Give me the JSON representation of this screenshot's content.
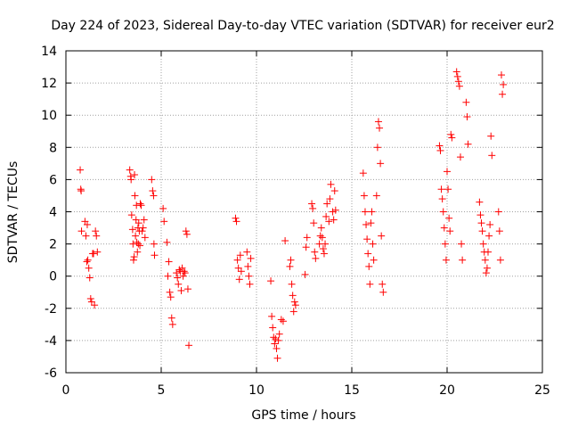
{
  "chart_data": {
    "type": "scatter",
    "title": "Day 224 of 2023, Sidereal Day-to-day VTEC variation (SDTVAR) for receiver eur2",
    "xlabel": "GPS time / hours",
    "ylabel": "SDTVAR / TECUs",
    "xlim": [
      0,
      25
    ],
    "ylim": [
      -6,
      14
    ],
    "xticks": [
      0,
      5,
      10,
      15,
      20,
      25
    ],
    "yticks": [
      -6,
      -4,
      -2,
      0,
      2,
      4,
      6,
      8,
      10,
      12,
      14
    ],
    "grid": true,
    "marker": "+",
    "color": "#ff0000",
    "series": [
      {
        "name": "SDTVAR",
        "x": [
          0.75,
          0.78,
          0.8,
          0.82,
          1.0,
          1.05,
          1.1,
          1.12,
          1.15,
          1.2,
          1.25,
          1.3,
          1.35,
          1.4,
          1.45,
          1.5,
          1.55,
          1.6,
          1.65,
          3.35,
          3.4,
          3.42,
          3.45,
          3.5,
          3.52,
          3.55,
          3.58,
          3.6,
          3.62,
          3.65,
          3.68,
          3.7,
          3.72,
          3.75,
          3.78,
          3.8,
          3.82,
          3.85,
          3.88,
          3.9,
          3.95,
          4.0,
          4.05,
          4.1,
          4.15,
          4.5,
          4.55,
          4.6,
          4.62,
          4.65,
          5.1,
          5.15,
          5.3,
          5.35,
          5.4,
          5.45,
          5.5,
          5.55,
          5.6,
          5.8,
          5.85,
          5.9,
          5.95,
          6.0,
          6.05,
          6.1,
          6.15,
          6.2,
          6.25,
          6.3,
          6.35,
          6.4,
          6.45,
          8.9,
          8.95,
          9.0,
          9.05,
          9.1,
          9.15,
          9.2,
          9.5,
          9.55,
          9.6,
          9.65,
          9.7,
          10.75,
          10.8,
          10.85,
          10.9,
          10.95,
          11.0,
          11.05,
          11.1,
          11.15,
          11.2,
          11.3,
          11.4,
          11.5,
          11.75,
          11.8,
          11.85,
          11.9,
          11.95,
          12.0,
          12.05,
          12.55,
          12.6,
          12.65,
          12.9,
          12.95,
          13.0,
          13.05,
          13.1,
          13.3,
          13.35,
          13.4,
          13.45,
          13.5,
          13.55,
          13.6,
          13.65,
          13.7,
          13.8,
          13.85,
          13.9,
          14.0,
          14.05,
          14.1,
          14.15,
          15.6,
          15.65,
          15.7,
          15.75,
          15.8,
          15.85,
          15.9,
          15.95,
          16.0,
          16.05,
          16.1,
          16.15,
          16.3,
          16.35,
          16.4,
          16.45,
          16.5,
          16.55,
          16.6,
          16.65,
          19.6,
          19.65,
          19.7,
          19.75,
          19.8,
          19.85,
          19.9,
          19.95,
          20.0,
          20.05,
          20.1,
          20.15,
          20.2,
          20.25,
          20.5,
          20.55,
          20.6,
          20.65,
          20.7,
          20.75,
          20.8,
          21.0,
          21.05,
          21.1,
          21.7,
          21.75,
          21.8,
          21.85,
          21.9,
          21.95,
          22.0,
          22.05,
          22.1,
          22.15,
          22.2,
          22.25,
          22.3,
          22.35,
          22.7,
          22.75,
          22.8,
          22.85,
          22.9,
          22.95
        ],
        "y": [
          6.6,
          5.4,
          5.3,
          2.8,
          3.4,
          2.5,
          0.9,
          3.2,
          1.0,
          0.5,
          -0.1,
          -1.4,
          -1.6,
          1.4,
          1.4,
          -1.8,
          2.8,
          2.5,
          1.5,
          6.6,
          6.2,
          6.0,
          3.8,
          2.9,
          2.0,
          1.0,
          1.2,
          6.3,
          5.0,
          2.5,
          3.5,
          4.4,
          2.1,
          1.5,
          3.0,
          2.0,
          3.3,
          2.8,
          1.9,
          4.5,
          4.4,
          2.8,
          3.0,
          3.5,
          2.4,
          6.0,
          5.3,
          5.0,
          2.0,
          1.3,
          4.2,
          3.4,
          2.1,
          0.0,
          0.9,
          -1.0,
          -1.3,
          -2.6,
          -3.0,
          0.2,
          -0.1,
          -0.5,
          0.4,
          0.3,
          -0.9,
          0.5,
          0.0,
          0.3,
          0.2,
          2.8,
          2.6,
          -0.8,
          -4.3,
          3.6,
          3.4,
          1.0,
          0.5,
          -0.2,
          1.3,
          0.3,
          1.5,
          0.6,
          0.0,
          -0.5,
          1.1,
          -0.3,
          -2.5,
          -3.2,
          -3.8,
          -4.2,
          -3.9,
          -4.5,
          -5.1,
          -4.0,
          -3.6,
          -2.7,
          -2.8,
          2.2,
          0.6,
          1.0,
          -0.5,
          -1.2,
          -2.2,
          -1.6,
          -1.8,
          0.1,
          1.8,
          2.4,
          4.5,
          4.2,
          3.3,
          1.5,
          1.1,
          2.0,
          2.5,
          3.0,
          2.4,
          1.7,
          1.4,
          2.0,
          3.7,
          4.5,
          3.4,
          4.8,
          5.7,
          4.0,
          3.5,
          5.3,
          4.1,
          6.4,
          5.0,
          4.0,
          3.2,
          2.3,
          1.4,
          0.6,
          -0.5,
          3.3,
          4.0,
          2.0,
          1.0,
          5.0,
          8.0,
          9.6,
          9.2,
          7.0,
          2.5,
          -0.5,
          -1.0,
          8.1,
          7.8,
          5.4,
          4.8,
          4.0,
          3.0,
          2.0,
          1.0,
          6.5,
          5.4,
          3.6,
          2.8,
          8.8,
          8.6,
          12.7,
          12.4,
          12.1,
          11.8,
          7.4,
          2.0,
          1.0,
          10.8,
          9.9,
          8.2,
          4.6,
          3.8,
          3.3,
          2.8,
          2.0,
          1.5,
          1.0,
          0.2,
          0.5,
          1.5,
          2.5,
          3.2,
          8.7,
          7.5,
          4.0,
          2.8,
          1.0,
          12.5,
          11.3,
          11.9
        ]
      }
    ]
  }
}
